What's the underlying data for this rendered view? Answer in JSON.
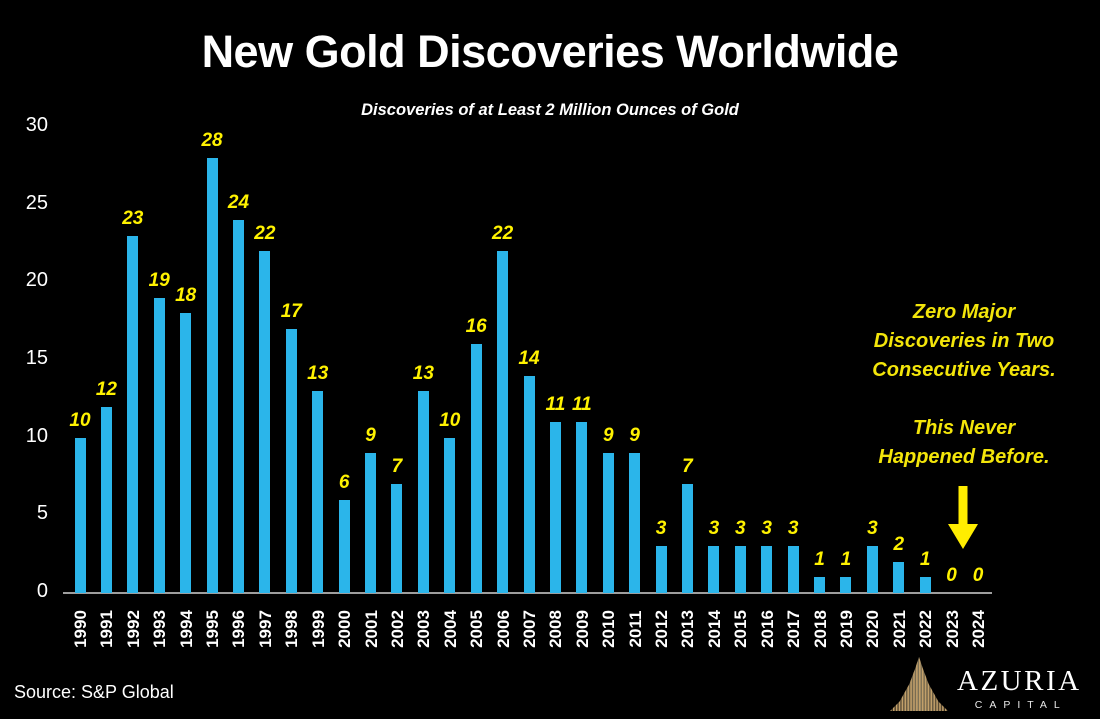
{
  "title": "New Gold Discoveries Worldwide",
  "subtitle": "Discoveries of at Least 2 Million Ounces of Gold",
  "source": "Source: S&P Global",
  "annotation": {
    "para1": {
      "lines": [
        "Zero Major",
        "Discoveries in Two",
        "Consecutive Years."
      ]
    },
    "para2": {
      "lines": [
        "This Never",
        "Happened Before."
      ]
    },
    "arrow_icon": "down-arrow-icon"
  },
  "logo": {
    "name": "AZURIA",
    "sub": "CAPITAL",
    "icon": "gold-peak-rays-icon",
    "icon_color": "#c2a06a"
  },
  "colors": {
    "background": "#000000",
    "bar": "#2bb5ea",
    "value_label": "#fff200",
    "annotation_text": "#f3e50a",
    "arrow": "#ffed00",
    "axis_line": "#9e9e9e",
    "axis_text": "#ffffff"
  },
  "chart_data": {
    "type": "bar",
    "title": "New Gold Discoveries Worldwide",
    "subtitle": "Discoveries of at Least 2 Million Ounces of Gold",
    "xlabel": "",
    "ylabel": "",
    "ylim": [
      0,
      30
    ],
    "yticks": [
      0,
      5,
      10,
      15,
      20,
      25,
      30
    ],
    "grid": false,
    "legend": false,
    "bar_color": "#2bb5ea",
    "data_label_style": "yellow bold italic above each bar",
    "x_tick_rotation": 90,
    "categories": [
      "1990",
      "1991",
      "1992",
      "1993",
      "1994",
      "1995",
      "1996",
      "1997",
      "1998",
      "1999",
      "2000",
      "2001",
      "2002",
      "2003",
      "2004",
      "2005",
      "2006",
      "2007",
      "2008",
      "2009",
      "2010",
      "2011",
      "2012",
      "2013",
      "2014",
      "2015",
      "2016",
      "2017",
      "2018",
      "2019",
      "2020",
      "2021",
      "2022",
      "2023",
      "2024"
    ],
    "values": [
      10,
      12,
      23,
      19,
      18,
      28,
      24,
      22,
      17,
      13,
      6,
      9,
      7,
      13,
      10,
      16,
      22,
      14,
      11,
      11,
      9,
      9,
      3,
      7,
      3,
      3,
      3,
      3,
      1,
      1,
      3,
      2,
      1,
      0,
      0
    ]
  }
}
